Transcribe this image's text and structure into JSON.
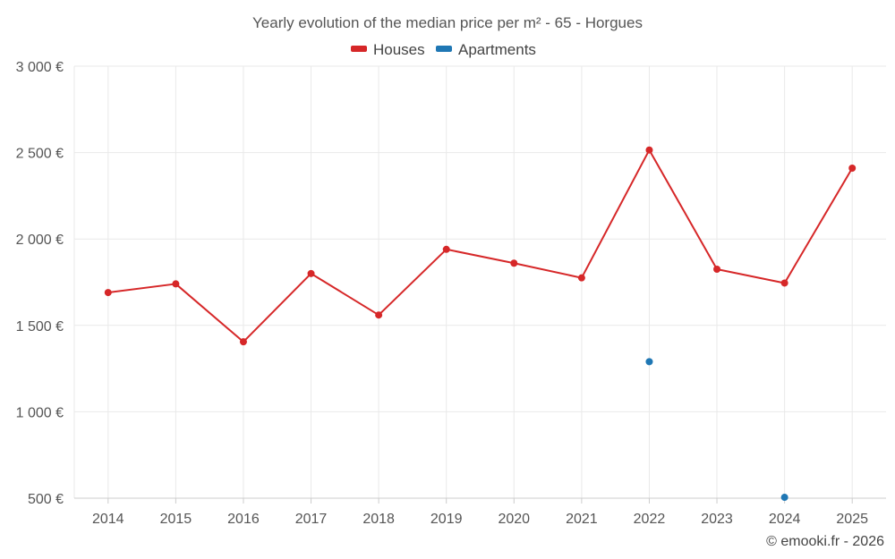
{
  "chart_data": {
    "type": "line",
    "title": "Yearly evolution of the median price per m² - 65 - Horgues",
    "categories": [
      "2014",
      "2015",
      "2016",
      "2017",
      "2018",
      "2019",
      "2020",
      "2021",
      "2022",
      "2023",
      "2024",
      "2025"
    ],
    "series": [
      {
        "name": "Houses",
        "color": "#d62728",
        "values": [
          1690,
          1740,
          1405,
          1800,
          1560,
          1940,
          1860,
          1775,
          2515,
          1825,
          1745,
          2410
        ]
      },
      {
        "name": "Apartments",
        "color": "#1f77b4",
        "values": [
          null,
          null,
          null,
          null,
          null,
          null,
          null,
          null,
          1290,
          null,
          505,
          null
        ]
      }
    ],
    "yticks": [
      "500 €",
      "1 000 €",
      "1 500 €",
      "2 000 €",
      "2 500 €",
      "3 000 €"
    ],
    "ytick_values": [
      500,
      1000,
      1500,
      2000,
      2500,
      3000
    ],
    "ylim": [
      500,
      3000
    ],
    "xlabel": "",
    "ylabel": "",
    "grid": true,
    "legend_position": "top-center",
    "credit": "© emooki.fr - 2026"
  }
}
